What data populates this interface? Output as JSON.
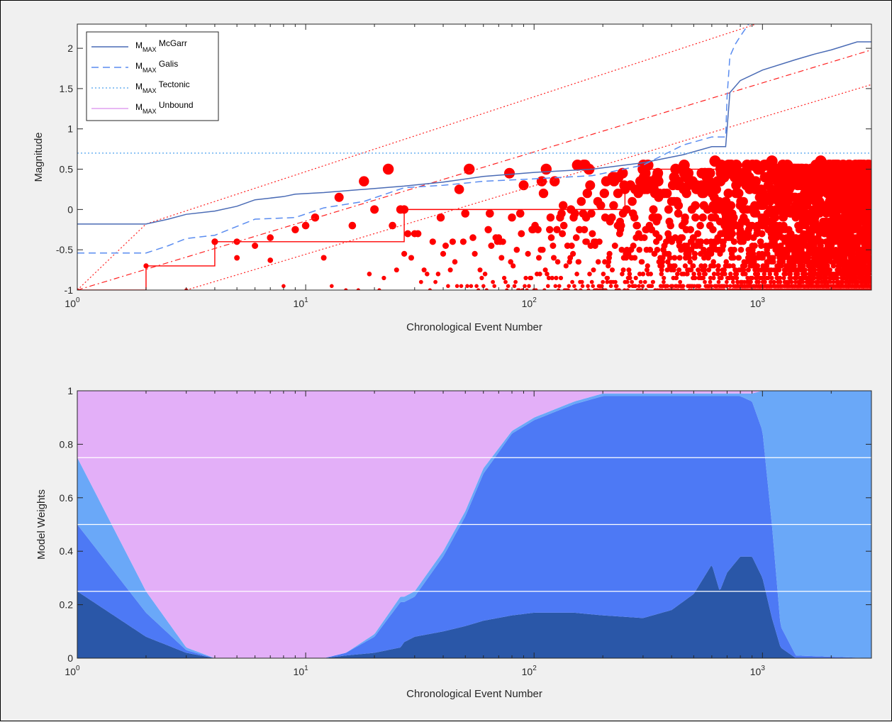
{
  "chart_data": [
    {
      "type": "line",
      "xscale": "log",
      "xlim": [
        1,
        3000
      ],
      "ylim": [
        -1,
        2.3
      ],
      "xlabel": "Chronological Event Number",
      "ylabel": "Magnitude",
      "xticks": [
        {
          "base": "10",
          "exp": "0"
        },
        {
          "base": "10",
          "exp": "1"
        },
        {
          "base": "10",
          "exp": "2"
        },
        {
          "base": "10",
          "exp": "3"
        }
      ],
      "yticks": [
        "-1",
        "-0.5",
        "0",
        "0.5",
        "1",
        "1.5",
        "2"
      ],
      "legend_position": "top-left",
      "legend": [
        {
          "main": "M",
          "sub": "MAX",
          "name": "McGarr",
          "style": "solid",
          "color": "#4a6bb5"
        },
        {
          "main": "M",
          "sub": "MAX",
          "name": "Galis",
          "style": "dashed",
          "color": "#5a8cf0"
        },
        {
          "main": "M",
          "sub": "MAX",
          "name": "Tectonic",
          "style": "dotted",
          "color": "#6ab0f0"
        },
        {
          "main": "M",
          "sub": "MAX",
          "name": "Unbound",
          "style": "solid",
          "color": "#e0a0f0"
        }
      ],
      "series": [
        {
          "name": "McGarr",
          "x": [
            1,
            2,
            2.5,
            3,
            4,
            5,
            6,
            8,
            9,
            12,
            18,
            27,
            40,
            60,
            100,
            180,
            300,
            450,
            600,
            690,
            700,
            720,
            800,
            1000,
            1400,
            1700,
            2000,
            2600,
            3000
          ],
          "y": [
            -0.18,
            -0.18,
            -0.12,
            -0.06,
            -0.02,
            0.04,
            0.12,
            0.16,
            0.19,
            0.21,
            0.25,
            0.29,
            0.34,
            0.41,
            0.46,
            0.5,
            0.58,
            0.68,
            0.78,
            0.78,
            1.0,
            1.45,
            1.6,
            1.73,
            1.86,
            1.93,
            1.98,
            2.08,
            2.08
          ]
        },
        {
          "name": "Galis",
          "x": [
            1,
            2,
            2.5,
            3,
            4,
            6,
            9,
            12,
            18,
            27,
            40,
            60,
            100,
            180,
            300,
            450,
            600,
            690,
            700,
            720,
            760,
            800,
            870
          ],
          "y": [
            -0.54,
            -0.54,
            -0.45,
            -0.36,
            -0.32,
            -0.12,
            -0.1,
            0.02,
            0.1,
            0.27,
            0.3,
            0.35,
            0.38,
            0.42,
            0.55,
            0.8,
            0.9,
            0.9,
            1.4,
            1.9,
            2.05,
            2.15,
            2.3
          ]
        },
        {
          "name": "Tectonic",
          "x": [
            1,
            3000
          ],
          "y": [
            0.7,
            0.7
          ]
        }
      ],
      "reference_lines": [
        {
          "style": "dashdot",
          "x": [
            1,
            3000
          ],
          "y": [
            -1,
            1.98
          ]
        },
        {
          "style": "dotted",
          "x": [
            1,
            2,
            3000
          ],
          "y": [
            -1,
            -0.18,
            2.77
          ]
        },
        {
          "style": "dotted",
          "x": [
            3,
            3000
          ],
          "y": [
            -1,
            1.55
          ]
        }
      ],
      "record_step": {
        "x": [
          1,
          2,
          3,
          4,
          27,
          250,
          300,
          3000
        ],
        "y": [
          -1,
          -0.7,
          -0.7,
          -0.4,
          0.0,
          0.25,
          0.5,
          0.6
        ]
      },
      "events": {
        "count": 2999,
        "magnitude_range": [
          -1,
          0.6
        ],
        "highlight_points": [
          {
            "x": 1,
            "y": -1
          },
          {
            "x": 2,
            "y": -0.7
          },
          {
            "x": 3,
            "y": -1
          },
          {
            "x": 4,
            "y": -0.4
          },
          {
            "x": 5,
            "y": -0.6
          },
          {
            "x": 7,
            "y": -0.63
          },
          {
            "x": 27,
            "y": 0.0
          },
          {
            "x": 250,
            "y": 0.25
          },
          {
            "x": 300,
            "y": 0.5
          },
          {
            "x": 620,
            "y": 0.6
          },
          {
            "x": 1100,
            "y": 0.6
          },
          {
            "x": 1800,
            "y": 0.6
          }
        ]
      },
      "colors": {
        "events": "#ff0000",
        "mcgarr": "#4a6bb5",
        "galis": "#5a8cf0",
        "tectonic": "#6ab0f0",
        "unbound": "#e0a0f0"
      }
    },
    {
      "type": "area",
      "stacked": true,
      "xscale": "log",
      "xlim": [
        1,
        3000
      ],
      "ylim": [
        0,
        1
      ],
      "xlabel": "Chronological Event Number",
      "ylabel": "Model Weights",
      "xticks": [
        {
          "base": "10",
          "exp": "0"
        },
        {
          "base": "10",
          "exp": "1"
        },
        {
          "base": "10",
          "exp": "2"
        },
        {
          "base": "10",
          "exp": "3"
        }
      ],
      "yticks": [
        "0",
        "0.2",
        "0.4",
        "0.6",
        "0.8",
        "1"
      ],
      "hlines": [
        0.25,
        0.5,
        0.75
      ],
      "x": [
        1,
        2,
        3,
        4,
        10,
        12,
        15,
        20,
        26,
        27,
        30,
        40,
        50,
        60,
        80,
        100,
        150,
        200,
        300,
        400,
        500,
        600,
        650,
        700,
        800,
        900,
        1000,
        1100,
        1200,
        1400,
        3000
      ],
      "series": [
        {
          "name": "McGarr",
          "color": "#2a57a8",
          "values": [
            0.25,
            0.08,
            0.02,
            0.0,
            0.0,
            0.0,
            0.01,
            0.02,
            0.04,
            0.06,
            0.08,
            0.1,
            0.12,
            0.14,
            0.16,
            0.17,
            0.17,
            0.16,
            0.15,
            0.18,
            0.24,
            0.35,
            0.25,
            0.32,
            0.38,
            0.38,
            0.3,
            0.15,
            0.04,
            0.0,
            0.0
          ]
        },
        {
          "name": "Galis",
          "color": "#4d79f5",
          "values": [
            0.25,
            0.09,
            0.01,
            0.0,
            0.0,
            0.0,
            0.01,
            0.06,
            0.17,
            0.15,
            0.15,
            0.28,
            0.41,
            0.55,
            0.68,
            0.72,
            0.78,
            0.82,
            0.83,
            0.8,
            0.74,
            0.63,
            0.73,
            0.66,
            0.6,
            0.58,
            0.55,
            0.35,
            0.08,
            0.01,
            0.0
          ]
        },
        {
          "name": "Tectonic",
          "color": "#6aa8f8",
          "values": [
            0.25,
            0.08,
            0.01,
            0.0,
            0.0,
            0.0,
            0.0,
            0.01,
            0.02,
            0.02,
            0.02,
            0.02,
            0.02,
            0.02,
            0.01,
            0.01,
            0.01,
            0.01,
            0.01,
            0.01,
            0.01,
            0.01,
            0.01,
            0.01,
            0.01,
            0.03,
            0.15,
            0.5,
            0.88,
            0.99,
            1.0
          ]
        },
        {
          "name": "Unbound",
          "color": "#e3aff8",
          "values": [
            0.25,
            0.75,
            0.96,
            1.0,
            1.0,
            1.0,
            0.98,
            0.91,
            0.77,
            0.77,
            0.75,
            0.6,
            0.45,
            0.29,
            0.15,
            0.1,
            0.04,
            0.01,
            0.01,
            0.01,
            0.01,
            0.01,
            0.01,
            0.01,
            0.01,
            0.01,
            0.0,
            0.0,
            0.0,
            0.0,
            0.0
          ]
        }
      ]
    }
  ]
}
